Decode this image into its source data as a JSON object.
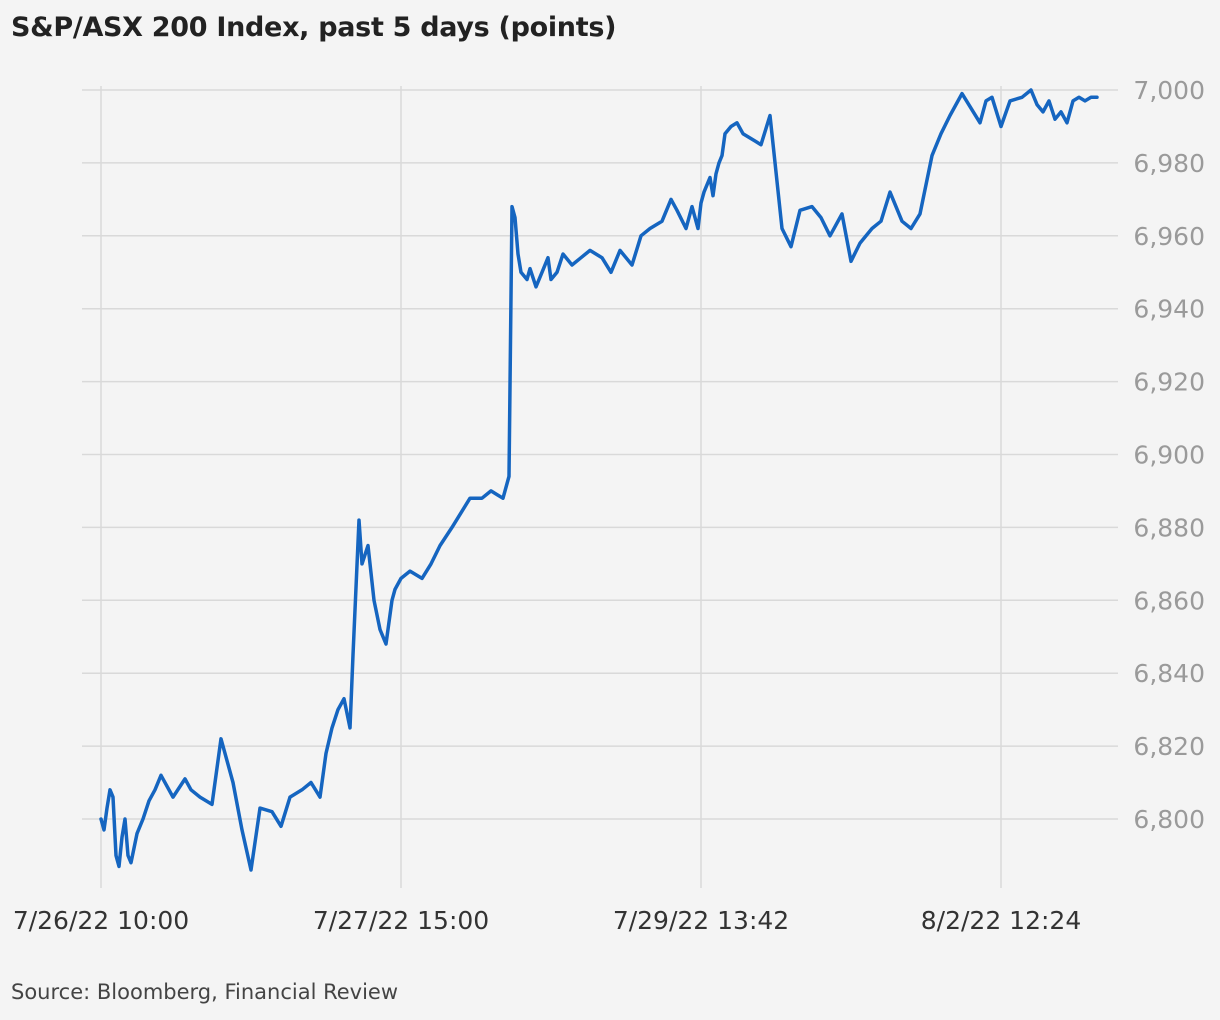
{
  "title": "S&P/ASX 200 Index, past 5 days (points)",
  "source": "Source: Bloomberg, Financial Review",
  "colors": {
    "background": "#f4f4f4",
    "line": "#1565c0",
    "grid": "#d9d9d9",
    "tick_text": "#9a9a9a",
    "axis_text": "#333333"
  },
  "chart_data": {
    "type": "line",
    "title": "S&P/ASX 200 Index, past 5 days (points)",
    "xlabel": "",
    "ylabel": "",
    "ylim": [
      6782,
      7003
    ],
    "yticks": [
      6800,
      6820,
      6840,
      6860,
      6880,
      6900,
      6920,
      6940,
      6960,
      6980,
      7000
    ],
    "ytick_labels": [
      "6,800",
      "6,820",
      "6,840",
      "6,860",
      "6,880",
      "6,900",
      "6,920",
      "6,940",
      "6,960",
      "6,980",
      "7,000"
    ],
    "xticks": [
      0,
      1,
      2,
      3
    ],
    "xtick_labels": [
      "7/26/22 10:00",
      "7/27/22 15:00",
      "7/29/22 13:42",
      "8/2/22 12:24"
    ],
    "x_unit": "interval between labelled x ticks",
    "grid": "both",
    "legend": "none",
    "series": [
      {
        "x": [
          0,
          0.01,
          0.02,
          0.03,
          0.04,
          0.05,
          0.06,
          0.07,
          0.08,
          0.09,
          0.1,
          0.12,
          0.14,
          0.16,
          0.18,
          0.2,
          0.24,
          0.28,
          0.3,
          0.33,
          0.37,
          0.4,
          0.44,
          0.47,
          0.5,
          0.53,
          0.57,
          0.6,
          0.63,
          0.67,
          0.7,
          0.73,
          0.75,
          0.77,
          0.79,
          0.81,
          0.83,
          0.84,
          0.86,
          0.87,
          0.89,
          0.91,
          0.93,
          0.95,
          0.97,
          0.98,
          1.0,
          1.03,
          1.07,
          1.1,
          1.13,
          1.17,
          1.2,
          1.23,
          1.27,
          1.3,
          1.32,
          1.34,
          1.36,
          1.37,
          1.38,
          1.39,
          1.4,
          1.41,
          1.42,
          1.43,
          1.45,
          1.47,
          1.49,
          1.5,
          1.52,
          1.54,
          1.57,
          1.6,
          1.63,
          1.67,
          1.7,
          1.73,
          1.77,
          1.8,
          1.83,
          1.87,
          1.9,
          1.92,
          1.95,
          1.97,
          1.99,
          2.0,
          2.01,
          2.02,
          2.03,
          2.04,
          2.05,
          2.06,
          2.07,
          2.08,
          2.1,
          2.12,
          2.14,
          2.16,
          2.18,
          2.2,
          2.23,
          2.27,
          2.3,
          2.33,
          2.37,
          2.4,
          2.43,
          2.47,
          2.5,
          2.53,
          2.57,
          2.6,
          2.63,
          2.67,
          2.7,
          2.73,
          2.77,
          2.8,
          2.83,
          2.87,
          2.9,
          2.93,
          2.95,
          2.97,
          3.0,
          3.03,
          3.07,
          3.1,
          3.12,
          3.14,
          3.16,
          3.18,
          3.2,
          3.22,
          3.24,
          3.26,
          3.28,
          3.3,
          3.32
        ],
        "values": [
          6800,
          6797,
          6803,
          6808,
          6806,
          6790,
          6787,
          6795,
          6800,
          6790,
          6788,
          6796,
          6800,
          6805,
          6808,
          6812,
          6806,
          6811,
          6808,
          6806,
          6804,
          6822,
          6810,
          6797,
          6786,
          6803,
          6802,
          6798,
          6806,
          6808,
          6810,
          6806,
          6818,
          6825,
          6830,
          6833,
          6825,
          6845,
          6882,
          6870,
          6875,
          6860,
          6852,
          6848,
          6860,
          6863,
          6866,
          6868,
          6866,
          6870,
          6875,
          6880,
          6884,
          6888,
          6888,
          6890,
          6889,
          6888,
          6894,
          6968,
          6965,
          6955,
          6950,
          6949,
          6948,
          6951,
          6946,
          6950,
          6954,
          6948,
          6950,
          6955,
          6952,
          6954,
          6956,
          6954,
          6950,
          6956,
          6952,
          6960,
          6962,
          6964,
          6970,
          6967,
          6962,
          6968,
          6962,
          6969,
          6972,
          6974,
          6976,
          6971,
          6977,
          6980,
          6982,
          6988,
          6990,
          6991,
          6988,
          6987,
          6986,
          6985,
          6993,
          6962,
          6957,
          6967,
          6968,
          6965,
          6960,
          6966,
          6953,
          6958,
          6962,
          6964,
          6972,
          6964,
          6962,
          6966,
          6982,
          6988,
          6993,
          6999,
          6995,
          6991,
          6997,
          6998,
          6990,
          6997,
          6998,
          7000,
          6996,
          6994,
          6997,
          6992,
          6994,
          6991,
          6997,
          6998,
          6997,
          6998,
          6998
        ]
      }
    ]
  }
}
